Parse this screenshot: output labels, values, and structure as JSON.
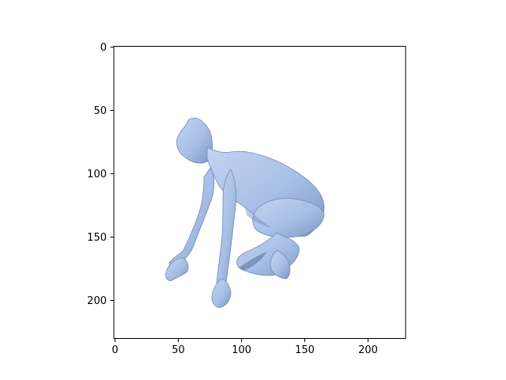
{
  "image": {
    "subject": "humanoid-figure-crouching",
    "colors": {
      "body": "#a7bfe6",
      "body_light": "#c3d4f0",
      "body_shadow": "#6f89b6",
      "body_dark": "#4f6690"
    }
  },
  "axes": {
    "xlim": [
      0,
      230
    ],
    "ylim": [
      230,
      0
    ],
    "xticks": [
      {
        "value": 0,
        "label": "0"
      },
      {
        "value": 50,
        "label": "50"
      },
      {
        "value": 100,
        "label": "100"
      },
      {
        "value": 150,
        "label": "150"
      },
      {
        "value": 200,
        "label": "200"
      }
    ],
    "yticks": [
      {
        "value": 0,
        "label": "0"
      },
      {
        "value": 50,
        "label": "50"
      },
      {
        "value": 100,
        "label": "100"
      },
      {
        "value": 150,
        "label": "150"
      },
      {
        "value": 200,
        "label": "200"
      }
    ],
    "grid": false
  }
}
